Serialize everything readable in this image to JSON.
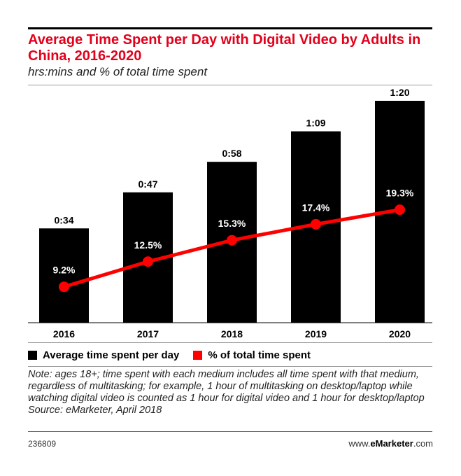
{
  "header": {
    "title": "Average Time Spent per Day with Digital Video by Adults in China, 2016-2020",
    "subtitle": "hrs:mins and % of total time spent"
  },
  "chart_data": {
    "type": "bar",
    "categories": [
      "2016",
      "2017",
      "2018",
      "2019",
      "2020"
    ],
    "series": [
      {
        "name": "Average time spent per day",
        "kind": "bar",
        "values_minutes": [
          34,
          47,
          58,
          69,
          80
        ],
        "labels": [
          "0:34",
          "0:47",
          "0:58",
          "1:09",
          "1:20"
        ],
        "color": "#000000"
      },
      {
        "name": "% of total time spent",
        "kind": "line",
        "values": [
          9.2,
          12.5,
          15.3,
          17.4,
          19.3
        ],
        "labels": [
          "9.2%",
          "12.5%",
          "15.3%",
          "17.4%",
          "19.3%"
        ],
        "color": "#ff0000"
      }
    ],
    "grid": false,
    "legend_position": "bottom-left"
  },
  "legend": {
    "items": [
      {
        "label": "Average time spent per day",
        "color": "#000000"
      },
      {
        "label": "% of total time spent",
        "color": "#ff0000"
      }
    ]
  },
  "note": {
    "text": "Note: ages 18+; time spent with each medium includes all time spent with that medium, regardless of multitasking; for example, 1 hour of multitasking on desktop/laptop while watching digital video is counted as 1 hour for digital video and 1 hour for desktop/laptop",
    "source": "Source: eMarketer, April 2018"
  },
  "footer": {
    "id": "236809",
    "brand_prefix": "www.",
    "brand_name": "eMarketer",
    "brand_suffix": ".com"
  }
}
